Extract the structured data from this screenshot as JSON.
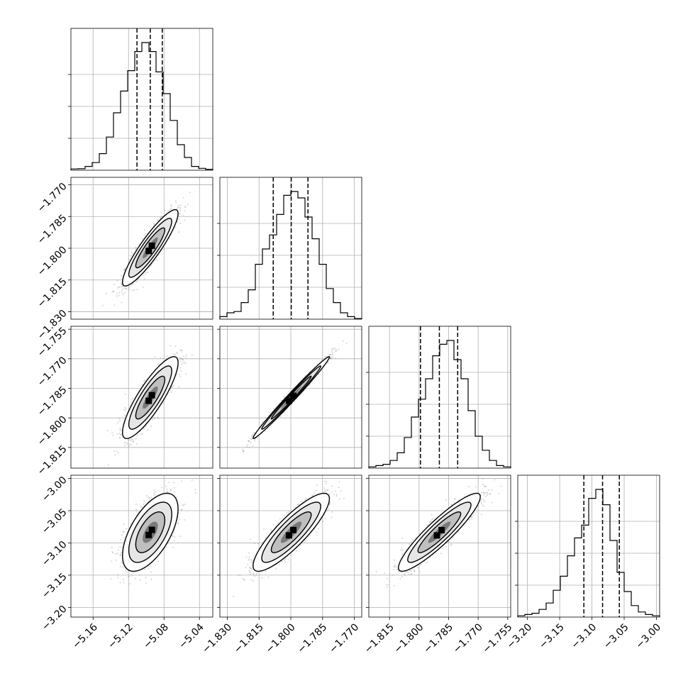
{
  "chart_data": {
    "type": "corner",
    "grid": true,
    "params": [
      {
        "range": [
          -5.185,
          -5.025
        ],
        "ticks": [
          -5.16,
          -5.12,
          -5.08,
          -5.04
        ],
        "tick_labels": [
          "−5.16",
          "−5.12",
          "−5.08",
          "−5.04"
        ],
        "quantiles": [
          -5.1105,
          -5.0955,
          -5.082
        ],
        "hist": [
          0.01,
          0.012,
          0.03,
          0.06,
          0.13,
          0.26,
          0.45,
          0.62,
          0.78,
          0.93,
          1.0,
          0.93,
          0.77,
          0.6,
          0.39,
          0.2,
          0.1,
          0.03,
          0.015,
          0.007
        ]
      },
      {
        "range": [
          -1.8335,
          -1.7665
        ],
        "ticks": [
          -1.83,
          -1.815,
          -1.8,
          -1.785,
          -1.77
        ],
        "tick_labels": [
          "−1.830",
          "−1.815",
          "−1.800",
          "−1.785",
          "−1.770"
        ],
        "quantiles": [
          -1.8083,
          -1.7998,
          -1.7919
        ],
        "hist": [
          0.02,
          0.05,
          0.06,
          0.13,
          0.23,
          0.43,
          0.55,
          0.66,
          0.82,
          0.97,
          1.0,
          0.95,
          0.8,
          0.63,
          0.43,
          0.24,
          0.13,
          0.05,
          0.02,
          0.005
        ]
      },
      {
        "range": [
          -1.8255,
          -1.7535
        ],
        "ticks": [
          -1.815,
          -1.8,
          -1.785,
          -1.77,
          -1.755
        ],
        "tick_labels": [
          "−1.815",
          "−1.800",
          "−1.785",
          "−1.770",
          "−1.755"
        ],
        "quantiles": [
          -1.7993,
          -1.7897,
          -1.7804
        ],
        "hist": [
          0.01,
          0.02,
          0.03,
          0.06,
          0.12,
          0.24,
          0.4,
          0.54,
          0.7,
          0.88,
          0.97,
          1.0,
          0.85,
          0.7,
          0.45,
          0.25,
          0.14,
          0.06,
          0.02,
          0.01
        ]
      },
      {
        "range": [
          -3.215,
          -2.995
        ],
        "ticks": [
          -3.2,
          -3.15,
          -3.1,
          -3.05,
          -3.0
        ],
        "tick_labels": [
          "−3.20",
          "−3.15",
          "−3.10",
          "−3.05",
          "−3.00"
        ],
        "quantiles": [
          -3.1125,
          -3.0835,
          -3.0575
        ],
        "hist": [
          0.01,
          0.02,
          0.03,
          0.06,
          0.11,
          0.21,
          0.32,
          0.48,
          0.62,
          0.72,
          0.93,
          1.0,
          0.88,
          0.6,
          0.35,
          0.2,
          0.09,
          0.04,
          0.02,
          0.01
        ]
      }
    ],
    "correlation": {
      "1-0": 0.9,
      "2-0": 0.85,
      "2-1": 0.99,
      "3-0": 0.6,
      "3-1": 0.86,
      "3-2": 0.91
    }
  }
}
